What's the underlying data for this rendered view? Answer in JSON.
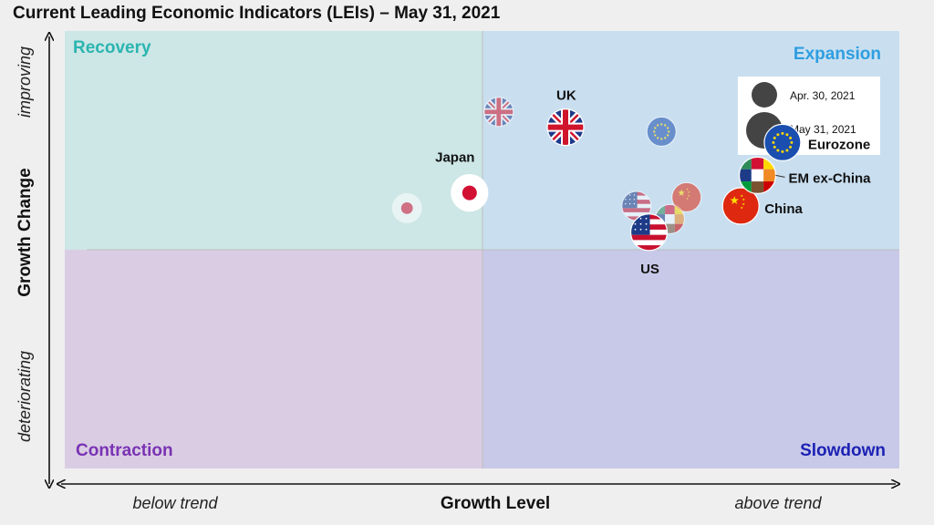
{
  "title": "Current Leading Economic Indicators (LEIs) – May 31, 2021",
  "chart_data": {
    "type": "scatter",
    "title": "Current Leading Economic Indicators (LEIs) – May 31, 2021",
    "xlabel": "Growth Level",
    "ylabel": "Growth Change",
    "x_low_label": "below trend",
    "x_high_label": "above trend",
    "y_high_label": "improving",
    "y_low_label": "deteriorating",
    "quadrants": [
      {
        "name": "Recovery",
        "position": "top-left",
        "color": "#cde6e6",
        "label_color": "#2bb5b0"
      },
      {
        "name": "Expansion",
        "position": "top-right",
        "color": "#c9dff0",
        "label_color": "#2e9ee0"
      },
      {
        "name": "Contraction",
        "position": "bottom-left",
        "color": "#dacde3",
        "label_color": "#7a32b4"
      },
      {
        "name": "Slowdown",
        "position": "bottom-right",
        "color": "#c8c9e8",
        "label_color": "#1c22b4"
      }
    ],
    "legend": {
      "position": "top-right",
      "entries": [
        "Apr. 30, 2021",
        "May 31, 2021"
      ]
    },
    "axis_range": {
      "x": [
        -1,
        1
      ],
      "y": [
        -1,
        1
      ]
    },
    "series": [
      {
        "name": "Apr. 30, 2021",
        "points": [
          {
            "label": "UK",
            "x": 0.04,
            "y": 0.63,
            "flag": "uk-flag"
          },
          {
            "label": "Eurozone",
            "x": 0.43,
            "y": 0.54,
            "flag": "eu-flag"
          },
          {
            "label": "Japan",
            "x": -0.18,
            "y": 0.19,
            "flag": "japan-flag"
          },
          {
            "label": "US",
            "x": 0.37,
            "y": 0.2,
            "flag": "us-flag"
          },
          {
            "label": "China",
            "x": 0.49,
            "y": 0.24,
            "flag": "china-flag"
          },
          {
            "label": "EM ex-China",
            "x": 0.45,
            "y": 0.14,
            "flag": "em-flag"
          }
        ]
      },
      {
        "name": "May 31, 2021",
        "points": [
          {
            "label": "UK",
            "x": 0.2,
            "y": 0.56,
            "flag": "uk-flag"
          },
          {
            "label": "Eurozone",
            "x": 0.72,
            "y": 0.49,
            "flag": "eu-flag"
          },
          {
            "label": "Japan",
            "x": -0.03,
            "y": 0.26,
            "flag": "japan-flag"
          },
          {
            "label": "US",
            "x": 0.4,
            "y": 0.08,
            "flag": "us-flag"
          },
          {
            "label": "China",
            "x": 0.62,
            "y": 0.2,
            "flag": "china-flag"
          },
          {
            "label": "EM ex-China",
            "x": 0.66,
            "y": 0.34,
            "flag": "em-flag"
          }
        ]
      }
    ]
  }
}
